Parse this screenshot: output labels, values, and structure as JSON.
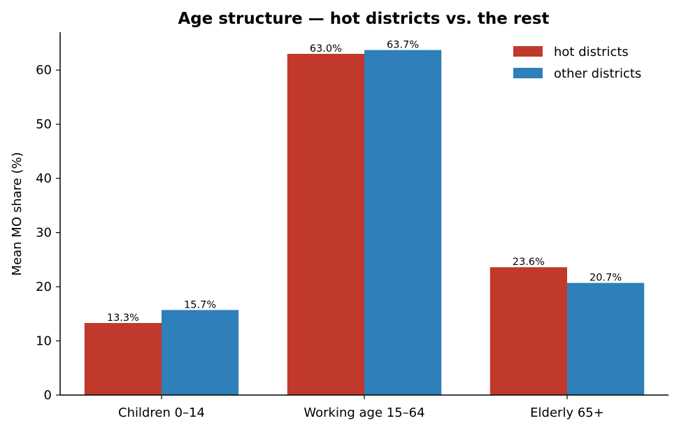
{
  "chart_data": {
    "type": "bar",
    "title": "Age structure — hot districts vs. the rest",
    "xlabel": "",
    "ylabel": "Mean MO share (%)",
    "categories": [
      "Children 0–14",
      "Working age 15–64",
      "Elderly 65+"
    ],
    "series": [
      {
        "name": "hot districts",
        "color": "#c0392b",
        "values": [
          13.3,
          63.0,
          23.6
        ],
        "labels": [
          "13.3%",
          "63.0%",
          "23.6%"
        ]
      },
      {
        "name": "other districts",
        "color": "#2e7fba",
        "values": [
          15.7,
          63.7,
          20.7
        ],
        "labels": [
          "15.7%",
          "63.7%",
          "20.7%"
        ]
      }
    ],
    "ylim": [
      0,
      67
    ],
    "yticks": [
      0,
      10,
      20,
      30,
      40,
      50,
      60
    ],
    "grid": false,
    "legend": "top-right"
  }
}
